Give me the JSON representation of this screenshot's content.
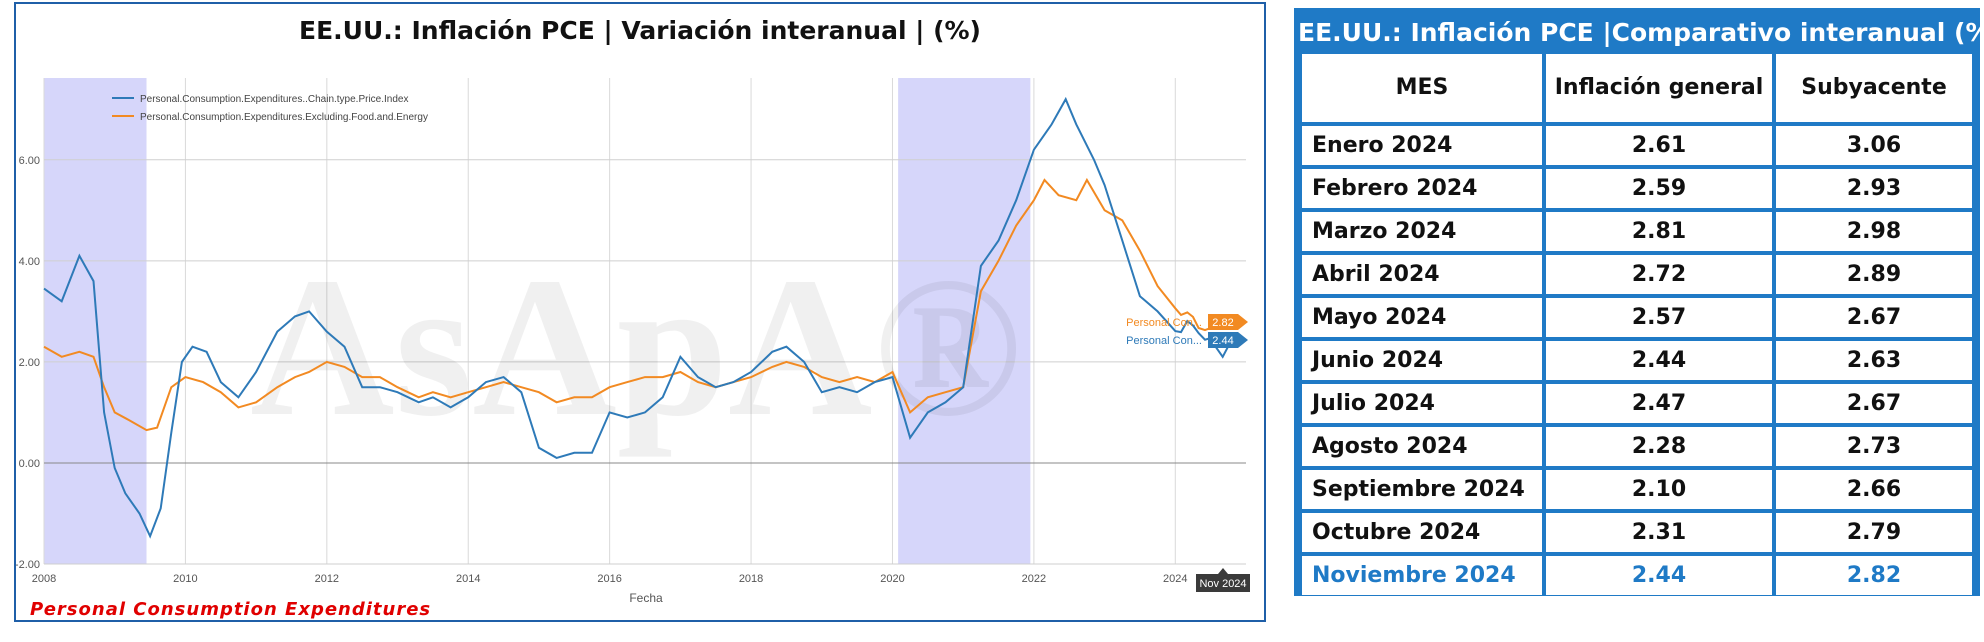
{
  "chart": {
    "title": "EE.UU.: Inflación PCE | Variación interanual | (%)",
    "footer": "Personal  Consumption  Expenditures",
    "end_badge": "Nov 2024",
    "watermark": "AsApA®"
  },
  "chart_data": {
    "type": "line",
    "title": "EE.UU.: Inflación PCE | Variación interanual | (%)",
    "xlabel": "Fecha",
    "ylabel": "",
    "xlim": [
      2008,
      2025
    ],
    "ylim": [
      -2,
      7.5
    ],
    "x_ticks": [
      "2008",
      "2010",
      "2012",
      "2014",
      "2016",
      "2018",
      "2020",
      "2022",
      "2024"
    ],
    "y_ticks": [
      "-2.00",
      "0.00",
      "2.00",
      "4.00",
      "6.00"
    ],
    "grid": true,
    "legend": "top-left",
    "recessions": [
      [
        2008.0,
        2009.45
      ],
      [
        2020.08,
        2021.95
      ]
    ],
    "series": [
      {
        "name": "Personal.Consumption.Expenditures..Chain.type.Price.Index",
        "short": "Personal Con...",
        "color": "#2e7ab8",
        "last_value": "2.44",
        "points": [
          [
            2008.0,
            3.45
          ],
          [
            2008.25,
            3.2
          ],
          [
            2008.5,
            4.1
          ],
          [
            2008.7,
            3.6
          ],
          [
            2008.85,
            1.0
          ],
          [
            2009.0,
            -0.1
          ],
          [
            2009.15,
            -0.6
          ],
          [
            2009.35,
            -1.0
          ],
          [
            2009.5,
            -1.45
          ],
          [
            2009.65,
            -0.9
          ],
          [
            2009.8,
            0.6
          ],
          [
            2009.95,
            2.0
          ],
          [
            2010.1,
            2.3
          ],
          [
            2010.3,
            2.2
          ],
          [
            2010.5,
            1.6
          ],
          [
            2010.75,
            1.3
          ],
          [
            2011.0,
            1.8
          ],
          [
            2011.3,
            2.6
          ],
          [
            2011.55,
            2.9
          ],
          [
            2011.75,
            3.0
          ],
          [
            2012.0,
            2.6
          ],
          [
            2012.25,
            2.3
          ],
          [
            2012.5,
            1.5
          ],
          [
            2012.75,
            1.5
          ],
          [
            2013.0,
            1.4
          ],
          [
            2013.3,
            1.2
          ],
          [
            2013.5,
            1.3
          ],
          [
            2013.75,
            1.1
          ],
          [
            2014.0,
            1.3
          ],
          [
            2014.25,
            1.6
          ],
          [
            2014.5,
            1.7
          ],
          [
            2014.75,
            1.4
          ],
          [
            2015.0,
            0.3
          ],
          [
            2015.25,
            0.1
          ],
          [
            2015.5,
            0.2
          ],
          [
            2015.75,
            0.2
          ],
          [
            2016.0,
            1.0
          ],
          [
            2016.25,
            0.9
          ],
          [
            2016.5,
            1.0
          ],
          [
            2016.75,
            1.3
          ],
          [
            2017.0,
            2.1
          ],
          [
            2017.25,
            1.7
          ],
          [
            2017.5,
            1.5
          ],
          [
            2017.75,
            1.6
          ],
          [
            2018.0,
            1.8
          ],
          [
            2018.3,
            2.2
          ],
          [
            2018.5,
            2.3
          ],
          [
            2018.75,
            2.0
          ],
          [
            2019.0,
            1.4
          ],
          [
            2019.25,
            1.5
          ],
          [
            2019.5,
            1.4
          ],
          [
            2019.75,
            1.6
          ],
          [
            2020.0,
            1.7
          ],
          [
            2020.25,
            0.5
          ],
          [
            2020.5,
            1.0
          ],
          [
            2020.75,
            1.2
          ],
          [
            2021.0,
            1.5
          ],
          [
            2021.25,
            3.9
          ],
          [
            2021.5,
            4.4
          ],
          [
            2021.75,
            5.2
          ],
          [
            2022.0,
            6.2
          ],
          [
            2022.25,
            6.7
          ],
          [
            2022.45,
            7.2
          ],
          [
            2022.6,
            6.7
          ],
          [
            2022.85,
            6.0
          ],
          [
            2023.0,
            5.5
          ],
          [
            2023.25,
            4.4
          ],
          [
            2023.5,
            3.3
          ],
          [
            2023.75,
            3.0
          ],
          [
            2024.0,
            2.61
          ],
          [
            2024.08,
            2.59
          ],
          [
            2024.17,
            2.81
          ],
          [
            2024.25,
            2.72
          ],
          [
            2024.33,
            2.57
          ],
          [
            2024.42,
            2.44
          ],
          [
            2024.5,
            2.47
          ],
          [
            2024.58,
            2.28
          ],
          [
            2024.67,
            2.1
          ],
          [
            2024.75,
            2.31
          ],
          [
            2024.83,
            2.44
          ]
        ]
      },
      {
        "name": "Personal.Consumption.Expenditures.Excluding.Food.and.Energy",
        "short": "Personal Con...",
        "color": "#f28a22",
        "last_value": "2.82",
        "points": [
          [
            2008.0,
            2.3
          ],
          [
            2008.25,
            2.1
          ],
          [
            2008.5,
            2.2
          ],
          [
            2008.7,
            2.1
          ],
          [
            2008.85,
            1.5
          ],
          [
            2009.0,
            1.0
          ],
          [
            2009.2,
            0.85
          ],
          [
            2009.45,
            0.65
          ],
          [
            2009.6,
            0.7
          ],
          [
            2009.8,
            1.5
          ],
          [
            2010.0,
            1.7
          ],
          [
            2010.25,
            1.6
          ],
          [
            2010.5,
            1.4
          ],
          [
            2010.75,
            1.1
          ],
          [
            2011.0,
            1.2
          ],
          [
            2011.3,
            1.5
          ],
          [
            2011.55,
            1.7
          ],
          [
            2011.75,
            1.8
          ],
          [
            2012.0,
            2.0
          ],
          [
            2012.25,
            1.9
          ],
          [
            2012.5,
            1.7
          ],
          [
            2012.75,
            1.7
          ],
          [
            2013.0,
            1.5
          ],
          [
            2013.3,
            1.3
          ],
          [
            2013.5,
            1.4
          ],
          [
            2013.75,
            1.3
          ],
          [
            2014.0,
            1.4
          ],
          [
            2014.25,
            1.5
          ],
          [
            2014.5,
            1.6
          ],
          [
            2014.75,
            1.5
          ],
          [
            2015.0,
            1.4
          ],
          [
            2015.25,
            1.2
          ],
          [
            2015.5,
            1.3
          ],
          [
            2015.75,
            1.3
          ],
          [
            2016.0,
            1.5
          ],
          [
            2016.25,
            1.6
          ],
          [
            2016.5,
            1.7
          ],
          [
            2016.75,
            1.7
          ],
          [
            2017.0,
            1.8
          ],
          [
            2017.25,
            1.6
          ],
          [
            2017.5,
            1.5
          ],
          [
            2017.75,
            1.6
          ],
          [
            2018.0,
            1.7
          ],
          [
            2018.3,
            1.9
          ],
          [
            2018.5,
            2.0
          ],
          [
            2018.75,
            1.9
          ],
          [
            2019.0,
            1.7
          ],
          [
            2019.25,
            1.6
          ],
          [
            2019.5,
            1.7
          ],
          [
            2019.75,
            1.6
          ],
          [
            2020.0,
            1.8
          ],
          [
            2020.25,
            1.0
          ],
          [
            2020.5,
            1.3
          ],
          [
            2020.75,
            1.4
          ],
          [
            2021.0,
            1.5
          ],
          [
            2021.25,
            3.4
          ],
          [
            2021.5,
            4.0
          ],
          [
            2021.75,
            4.7
          ],
          [
            2022.0,
            5.2
          ],
          [
            2022.15,
            5.6
          ],
          [
            2022.35,
            5.3
          ],
          [
            2022.6,
            5.2
          ],
          [
            2022.75,
            5.6
          ],
          [
            2023.0,
            5.0
          ],
          [
            2023.25,
            4.8
          ],
          [
            2023.5,
            4.2
          ],
          [
            2023.75,
            3.5
          ],
          [
            2024.0,
            3.06
          ],
          [
            2024.08,
            2.93
          ],
          [
            2024.17,
            2.98
          ],
          [
            2024.25,
            2.89
          ],
          [
            2024.33,
            2.67
          ],
          [
            2024.42,
            2.63
          ],
          [
            2024.5,
            2.67
          ],
          [
            2024.58,
            2.73
          ],
          [
            2024.67,
            2.66
          ],
          [
            2024.75,
            2.79
          ],
          [
            2024.83,
            2.82
          ]
        ]
      }
    ]
  },
  "table": {
    "title": "EE.UU.: Inflación PCE  |Comparativo interanual (%)",
    "headers": {
      "mes": "MES",
      "general": "Inflación general",
      "subyacente": "Subyacente"
    },
    "rows": [
      {
        "mes": "Enero 2024",
        "general": "2.61",
        "subyacente": "3.06"
      },
      {
        "mes": "Febrero 2024",
        "general": "2.59",
        "subyacente": "2.93"
      },
      {
        "mes": "Marzo 2024",
        "general": "2.81",
        "subyacente": "2.98"
      },
      {
        "mes": "Abril 2024",
        "general": "2.72",
        "subyacente": "2.89"
      },
      {
        "mes": "Mayo 2024",
        "general": "2.57",
        "subyacente": "2.67"
      },
      {
        "mes": "Junio 2024",
        "general": "2.44",
        "subyacente": "2.63"
      },
      {
        "mes": "Julio 2024",
        "general": "2.47",
        "subyacente": "2.67"
      },
      {
        "mes": "Agosto 2024",
        "general": "2.28",
        "subyacente": "2.73"
      },
      {
        "mes": "Septiembre 2024",
        "general": "2.10",
        "subyacente": "2.66"
      },
      {
        "mes": "Octubre 2024",
        "general": "2.31",
        "subyacente": "2.79"
      },
      {
        "mes": "Noviembre 2024",
        "general": "2.44",
        "subyacente": "2.82"
      }
    ],
    "highlight_color": "#1f7ac6"
  }
}
